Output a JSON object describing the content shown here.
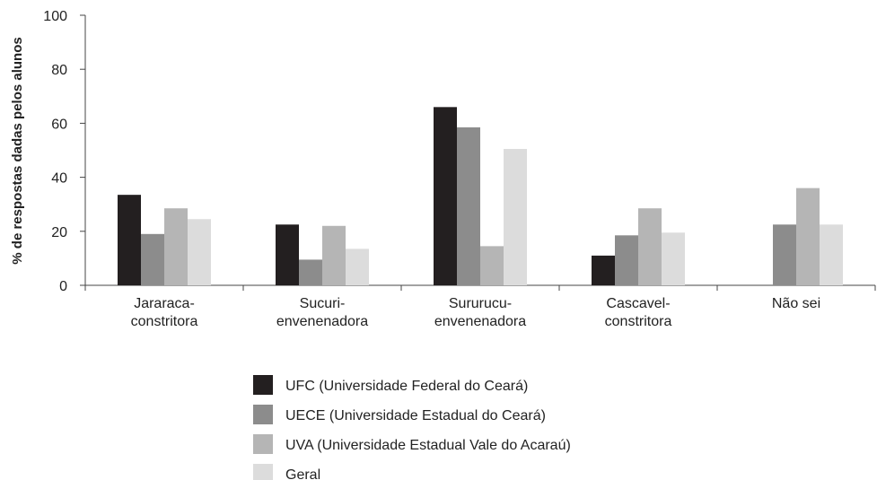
{
  "chart_data": {
    "type": "bar",
    "y_label": "% de respostas dadas pelos alunos",
    "categories": [
      "Jararaca-\nconstritora",
      "Sucuri-\nenvenenadora",
      "Sururucu-\nenvenenadora",
      "Cascavel-\nconstritora",
      "Não sei"
    ],
    "series": [
      {
        "name": "UFC (Universidade Federal do Ceará)",
        "color": "#231f20",
        "values": [
          33.5,
          22.5,
          66,
          11,
          null
        ]
      },
      {
        "name": "UECE (Universidade Estadual do Ceará)",
        "color": "#8c8c8c",
        "values": [
          19,
          9.5,
          58.5,
          18.5,
          22.5
        ]
      },
      {
        "name": "UVA (Universidade Estadual Vale do Acaraú)",
        "color": "#b5b5b5",
        "values": [
          28.5,
          22,
          14.5,
          28.5,
          36
        ]
      },
      {
        "name": "Geral",
        "color": "#dcdcdc",
        "values": [
          24.5,
          13.5,
          50.5,
          19.5,
          22.5
        ]
      }
    ],
    "ylim": [
      0,
      100
    ],
    "yticks": [
      0,
      20,
      40,
      60,
      80,
      100
    ],
    "grid": false,
    "legend": "bottom"
  }
}
